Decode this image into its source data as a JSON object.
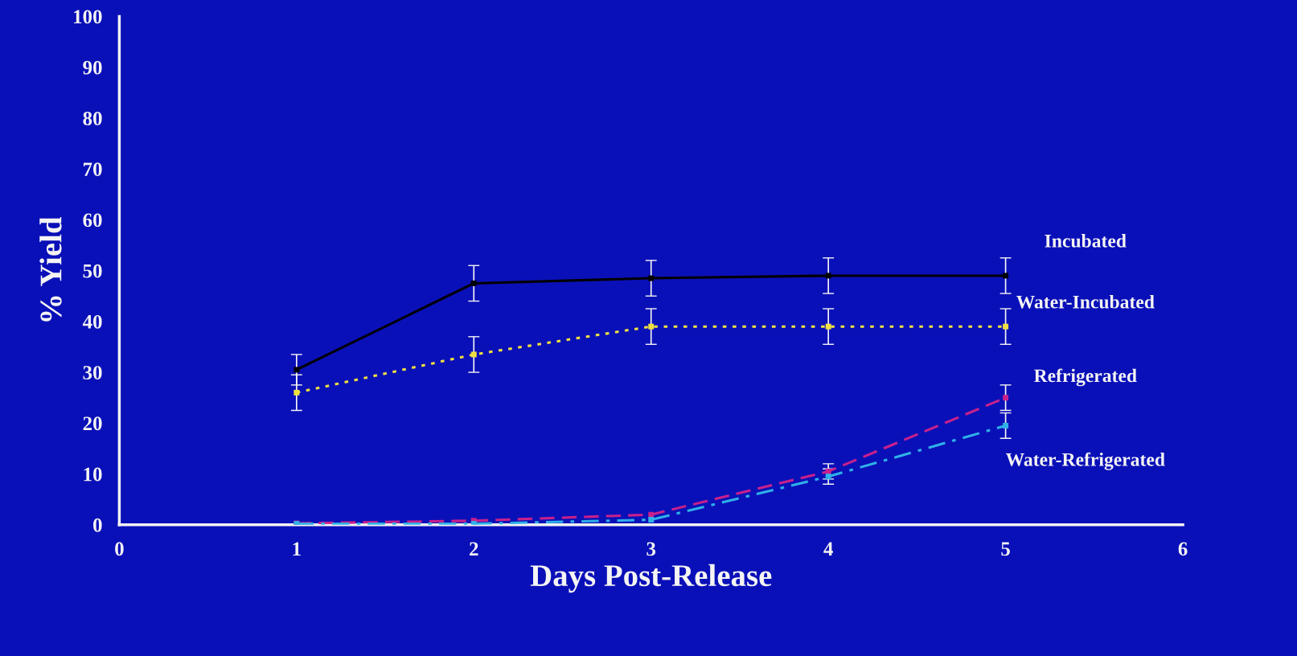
{
  "chart_data": {
    "type": "line",
    "xlabel": "Days Post-Release",
    "ylabel": "% Yield",
    "x": [
      1,
      2,
      3,
      4,
      5
    ],
    "series": [
      {
        "name": "Incubated",
        "color": "#000000",
        "line_style": "solid",
        "values": [
          30.5,
          47.5,
          48.5,
          49,
          49
        ],
        "errors": [
          3,
          3.5,
          3.5,
          3.5,
          3.5
        ]
      },
      {
        "name": "Water-Incubated",
        "color": "#f0e040",
        "line_style": "dotted",
        "values": [
          26,
          33.5,
          39,
          39,
          39
        ],
        "errors": [
          3.5,
          3.5,
          3.5,
          3.5,
          3.5
        ]
      },
      {
        "name": "Refrigerated",
        "color": "#c8208c",
        "line_style": "dashed",
        "values": [
          0.3,
          0.8,
          2,
          10.5,
          25
        ],
        "errors": [
          null,
          null,
          null,
          1.5,
          2.5
        ]
      },
      {
        "name": "Water-Refrigerated",
        "color": "#30b0e8",
        "line_style": "dashdot",
        "values": [
          0.2,
          0.2,
          1,
          9.5,
          19.5
        ],
        "errors": [
          null,
          null,
          null,
          1.5,
          2.5
        ]
      }
    ],
    "xlim": [
      0,
      6
    ],
    "ylim": [
      0,
      100
    ],
    "xticks": [
      0,
      1,
      2,
      3,
      4,
      5,
      6
    ],
    "yticks": [
      0,
      10,
      20,
      30,
      40,
      50,
      60,
      70,
      80,
      90,
      100
    ],
    "marker": "square",
    "grid": false,
    "legend": false
  }
}
